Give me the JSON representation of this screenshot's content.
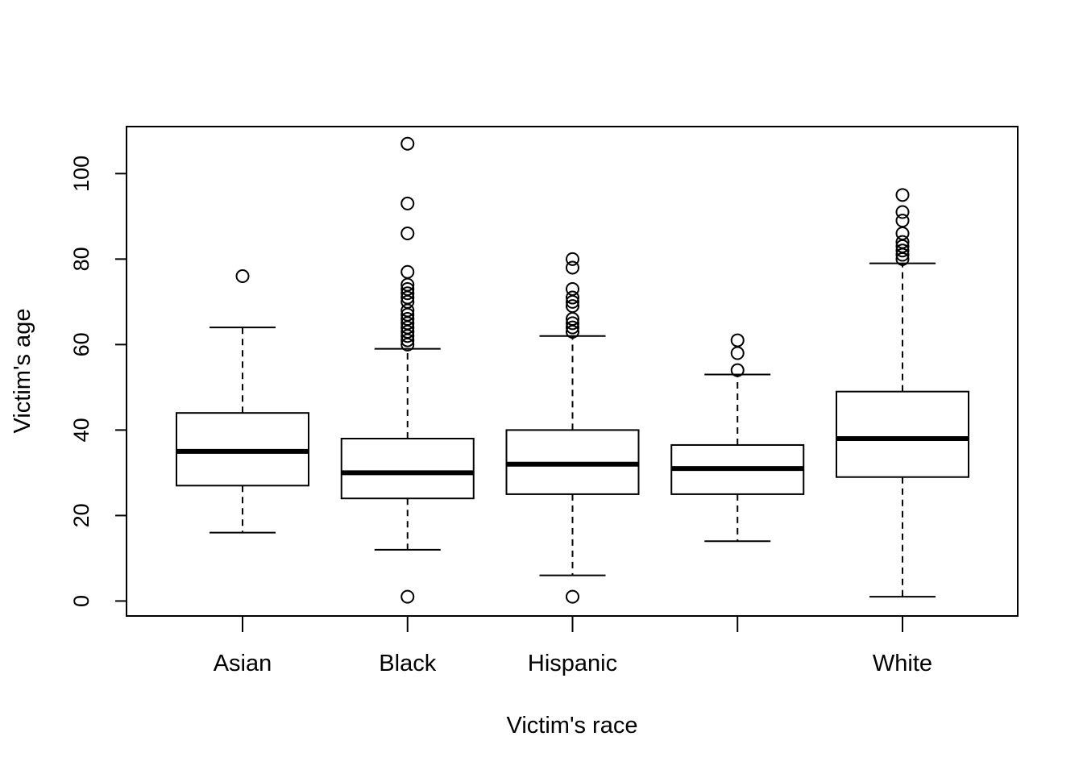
{
  "chart_data": {
    "type": "boxplot",
    "title": "",
    "xlabel": "Victim's race",
    "ylabel": "Victim's age",
    "ylim": [
      -3.5,
      111
    ],
    "yticks": [
      0,
      20,
      40,
      60,
      80,
      100
    ],
    "ytick_labels": [
      "0",
      "20",
      "40",
      "60",
      "80",
      "100"
    ],
    "grid": false,
    "categories": [
      "Asian",
      "Black",
      "Hispanic",
      "",
      "White"
    ],
    "boxes": [
      {
        "category": "Asian",
        "whisker_low": 16,
        "q1": 27,
        "median": 35,
        "q3": 44,
        "whisker_high": 64,
        "outliers": [
          76
        ]
      },
      {
        "category": "Black",
        "whisker_low": 12,
        "q1": 24,
        "median": 30,
        "q3": 38,
        "whisker_high": 59,
        "outliers": [
          1,
          60,
          61,
          62,
          63,
          64,
          65,
          66,
          67,
          68,
          70,
          71,
          72,
          73,
          74,
          77,
          86,
          93,
          107
        ]
      },
      {
        "category": "Hispanic",
        "whisker_low": 6,
        "q1": 25,
        "median": 32,
        "q3": 40,
        "whisker_high": 62,
        "outliers": [
          1,
          63,
          64,
          65,
          66,
          69,
          70,
          71,
          73,
          78,
          80
        ]
      },
      {
        "category": "",
        "whisker_low": 14,
        "q1": 25,
        "median": 31,
        "q3": 36.5,
        "whisker_high": 53,
        "outliers": [
          54,
          58,
          61
        ]
      },
      {
        "category": "White",
        "whisker_low": 1,
        "q1": 29,
        "median": 38,
        "q3": 49,
        "whisker_high": 79,
        "outliers": [
          80,
          81,
          82,
          83,
          84,
          86,
          89,
          91,
          95
        ]
      }
    ]
  }
}
